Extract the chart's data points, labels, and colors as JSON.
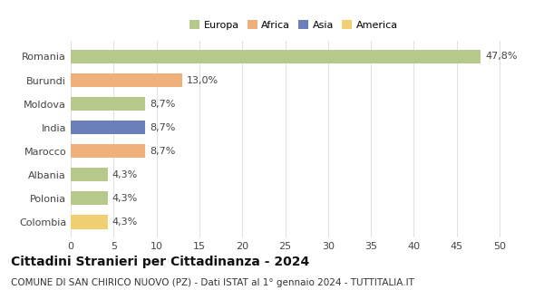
{
  "categories": [
    "Romania",
    "Burundi",
    "Moldova",
    "India",
    "Marocco",
    "Albania",
    "Polonia",
    "Colombia"
  ],
  "values": [
    47.8,
    13.0,
    8.7,
    8.7,
    8.7,
    4.3,
    4.3,
    4.3
  ],
  "labels": [
    "47,8%",
    "13,0%",
    "8,7%",
    "8,7%",
    "8,7%",
    "4,3%",
    "4,3%",
    "4,3%"
  ],
  "colors": [
    "#b5c98a",
    "#f0b07a",
    "#b5c98a",
    "#6b7fba",
    "#f0b07a",
    "#b5c98a",
    "#b5c98a",
    "#f0d070"
  ],
  "legend_labels": [
    "Europa",
    "Africa",
    "Asia",
    "America"
  ],
  "legend_colors": [
    "#b5c98a",
    "#f0b07a",
    "#6b7fba",
    "#f0d070"
  ],
  "xlim": [
    0,
    52
  ],
  "xticks": [
    0,
    5,
    10,
    15,
    20,
    25,
    30,
    35,
    40,
    45,
    50
  ],
  "title": "Cittadini Stranieri per Cittadinanza - 2024",
  "subtitle": "COMUNE DI SAN CHIRICO NUOVO (PZ) - Dati ISTAT al 1° gennaio 2024 - TUTTITALIA.IT",
  "bg_color": "#ffffff",
  "grid_color": "#e0e0e0",
  "title_fontsize": 10,
  "subtitle_fontsize": 7.5,
  "label_fontsize": 8,
  "tick_fontsize": 8
}
